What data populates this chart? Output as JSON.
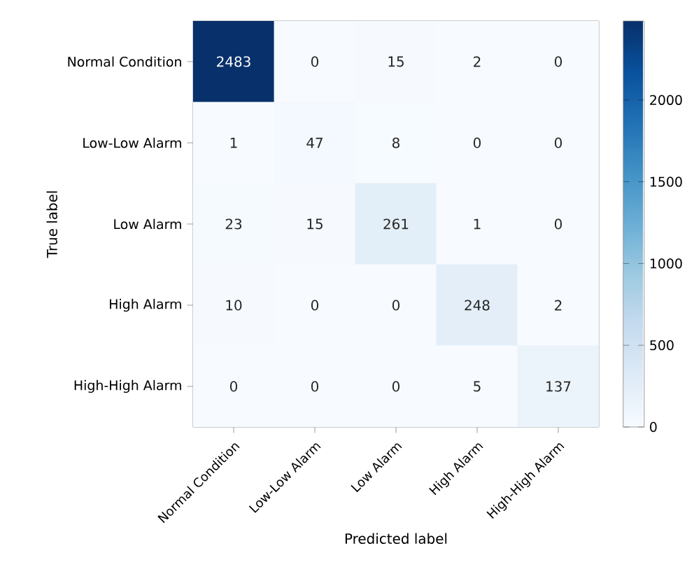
{
  "chart_data": {
    "type": "heatmap",
    "xlabel": "Predicted label",
    "ylabel": "True label",
    "categories": [
      "Normal Condition",
      "Low-Low Alarm",
      "Low Alarm",
      "High Alarm",
      "High-High Alarm"
    ],
    "y_categories": [
      "Normal Condition",
      "Low-Low Alarm",
      "Low Alarm",
      "High Alarm",
      "High-High Alarm"
    ],
    "cells": [
      [
        2483,
        0,
        15,
        2,
        0
      ],
      [
        1,
        47,
        8,
        0,
        0
      ],
      [
        23,
        15,
        261,
        1,
        0
      ],
      [
        10,
        0,
        0,
        248,
        2
      ],
      [
        0,
        0,
        0,
        5,
        137
      ]
    ],
    "clim": [
      0,
      2483
    ],
    "cticks": [
      0,
      500,
      1000,
      1500,
      2000
    ],
    "data_labels": true
  }
}
